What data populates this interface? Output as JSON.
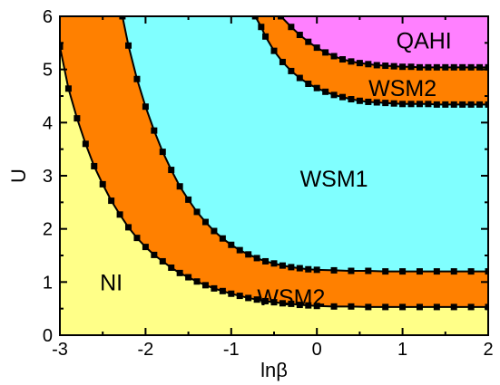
{
  "chart_data": {
    "type": "area",
    "xlabel": "lnβ",
    "ylabel": "U",
    "xlim": [
      -3,
      2
    ],
    "ylim": [
      0,
      6
    ],
    "xticks": [
      "-3",
      "-2",
      "-1",
      "0",
      "1",
      "2"
    ],
    "yticks": [
      "0",
      "1",
      "2",
      "3",
      "4",
      "5",
      "6"
    ],
    "colors": {
      "NI": "#ffff88",
      "WSM2": "#ff8000",
      "WSM1": "#80ffff",
      "QAHI": "#ff80ff",
      "boundary": "#000000"
    },
    "region_labels": [
      {
        "name": "NI",
        "x": -2.4,
        "y": 1.0
      },
      {
        "name": "WSM2",
        "x": -0.3,
        "y": 0.72
      },
      {
        "name": "WSM1",
        "x": 0.2,
        "y": 2.95
      },
      {
        "name": "WSM2",
        "x": 1.0,
        "y": 4.65
      },
      {
        "name": "QAHI",
        "x": 1.25,
        "y": 5.55
      }
    ],
    "boundaries": [
      {
        "name": "NI/WSM2 lower",
        "x": [
          -3.0,
          -2.9,
          -2.8,
          -2.7,
          -2.6,
          -2.5,
          -2.4,
          -2.3,
          -2.2,
          -2.1,
          -2.0,
          -1.9,
          -1.8,
          -1.7,
          -1.6,
          -1.5,
          -1.4,
          -1.3,
          -1.2,
          -1.1,
          -1.0,
          -0.9,
          -0.8,
          -0.7,
          -0.6,
          -0.5,
          -0.4,
          -0.3,
          -0.2,
          -0.1,
          0.0,
          0.2,
          0.4,
          0.6,
          0.8,
          1.0,
          1.2,
          1.4,
          1.6,
          1.8,
          2.0
        ],
        "y": [
          5.43,
          4.64,
          4.08,
          3.6,
          3.18,
          2.84,
          2.53,
          2.27,
          2.03,
          1.83,
          1.66,
          1.51,
          1.39,
          1.27,
          1.17,
          1.09,
          1.01,
          0.94,
          0.88,
          0.83,
          0.78,
          0.74,
          0.7,
          0.67,
          0.64,
          0.62,
          0.6,
          0.59,
          0.57,
          0.56,
          0.55,
          0.54,
          0.54,
          0.53,
          0.53,
          0.53,
          0.53,
          0.53,
          0.53,
          0.53,
          0.53
        ]
      },
      {
        "name": "WSM2/WSM1 lower",
        "x": [
          -2.27,
          -2.2,
          -2.1,
          -2.0,
          -1.9,
          -1.8,
          -1.7,
          -1.6,
          -1.5,
          -1.4,
          -1.3,
          -1.2,
          -1.1,
          -1.0,
          -0.9,
          -0.8,
          -0.7,
          -0.6,
          -0.5,
          -0.4,
          -0.3,
          -0.2,
          -0.1,
          0.0,
          0.2,
          0.4,
          0.6,
          0.8,
          1.0,
          1.2,
          1.4,
          1.6,
          1.8,
          2.0
        ],
        "y": [
          6.0,
          5.45,
          4.82,
          4.3,
          3.85,
          3.45,
          3.11,
          2.8,
          2.55,
          2.32,
          2.13,
          1.96,
          1.82,
          1.7,
          1.6,
          1.52,
          1.45,
          1.39,
          1.35,
          1.31,
          1.28,
          1.26,
          1.24,
          1.23,
          1.22,
          1.21,
          1.21,
          1.2,
          1.2,
          1.2,
          1.2,
          1.2,
          1.2,
          1.2
        ]
      },
      {
        "name": "WSM1/WSM2 upper",
        "x": [
          -0.72,
          -0.65,
          -0.6,
          -0.5,
          -0.4,
          -0.3,
          -0.2,
          -0.1,
          0.0,
          0.1,
          0.2,
          0.3,
          0.4,
          0.5,
          0.6,
          0.7,
          0.8,
          0.9,
          1.0,
          1.1,
          1.2,
          1.3,
          1.4,
          1.5,
          1.6,
          1.7,
          1.8,
          1.9,
          2.0
        ],
        "y": [
          6.0,
          5.8,
          5.62,
          5.35,
          5.14,
          4.97,
          4.84,
          4.73,
          4.65,
          4.58,
          4.52,
          4.48,
          4.44,
          4.41,
          4.39,
          4.38,
          4.37,
          4.36,
          4.35,
          4.35,
          4.35,
          4.35,
          4.34,
          4.34,
          4.34,
          4.34,
          4.34,
          4.34,
          4.34
        ]
      },
      {
        "name": "WSM2/QAHI upper",
        "x": [
          -0.42,
          -0.3,
          -0.2,
          -0.1,
          0.0,
          0.1,
          0.2,
          0.3,
          0.4,
          0.5,
          0.6,
          0.7,
          0.8,
          0.9,
          1.0,
          1.1,
          1.2,
          1.3,
          1.4,
          1.5,
          1.6,
          1.7,
          1.8,
          1.9,
          2.0
        ],
        "y": [
          6.0,
          5.8,
          5.65,
          5.52,
          5.41,
          5.32,
          5.25,
          5.19,
          5.15,
          5.12,
          5.1,
          5.08,
          5.07,
          5.06,
          5.05,
          5.05,
          5.04,
          5.04,
          5.04,
          5.04,
          5.04,
          5.04,
          5.04,
          5.04,
          5.04
        ]
      }
    ]
  }
}
